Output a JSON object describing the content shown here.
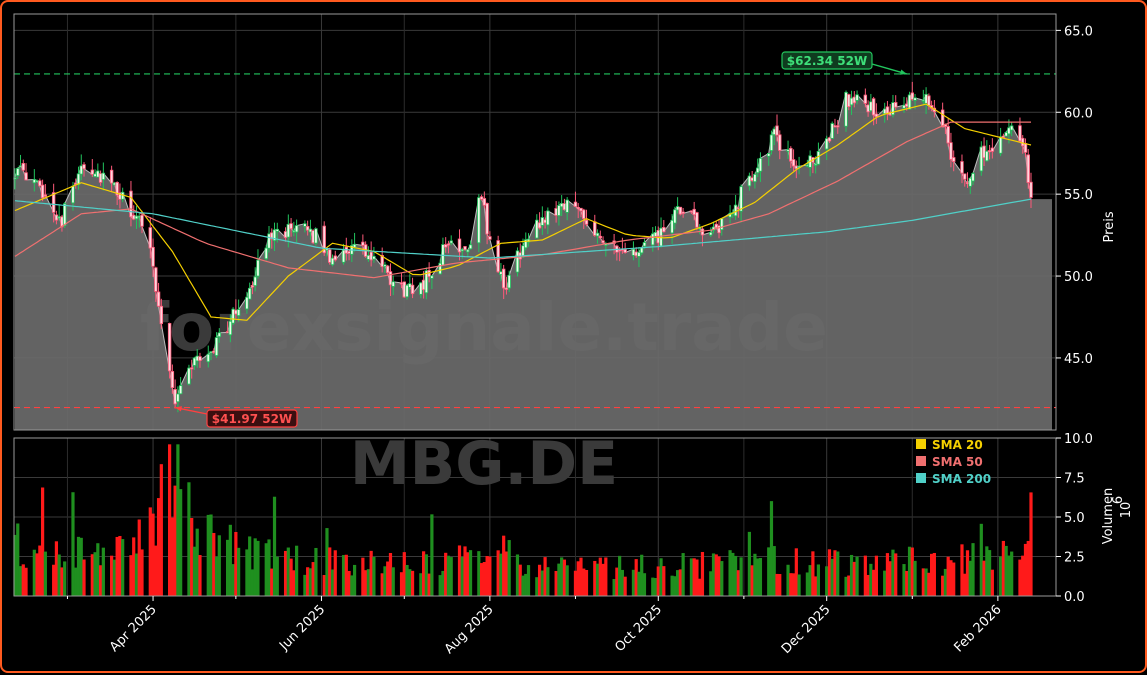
{
  "watermark": {
    "line1": "forexsignale.trade",
    "line2": "MBG.DE"
  },
  "colors": {
    "up": "#22c55e",
    "down": "#ff5a7a",
    "vol_up": "#1f8f1f",
    "vol_down": "#ff1a1a",
    "area": "#6b6b6b",
    "sma20": "#f5d000",
    "sma50": "#f07070",
    "sma200": "#50d0c8",
    "high_line": "#22c55e",
    "low_line": "#ff4040",
    "border": "#ff5a1f"
  },
  "chart_data": {
    "type": "line",
    "price_axis": {
      "label": "Preis",
      "ylim": [
        40.6,
        66.0
      ],
      "ticks": [
        45.0,
        50.0,
        55.0,
        60.0,
        65.0
      ]
    },
    "volume_axis": {
      "label": "Volumen",
      "multiplier": "10",
      "exponent": "6",
      "ylim": [
        0,
        10.0
      ],
      "ticks": [
        0.0,
        2.5,
        5.0,
        7.5,
        10.0
      ]
    },
    "x_ticks": [
      {
        "label": "Apr 2025",
        "date": "2025-04-01"
      },
      {
        "label": "Jun 2025",
        "date": "2025-06-01"
      },
      {
        "label": "Aug 2025",
        "date": "2025-08-01"
      },
      {
        "label": "Oct 2025",
        "date": "2025-10-01"
      },
      {
        "label": "Dec 2025",
        "date": "2025-12-01"
      },
      {
        "label": "Feb 2026",
        "date": "2026-02-01"
      }
    ],
    "date_range": [
      "2025-02-10",
      "2026-02-13"
    ],
    "close_keypoints": [
      [
        "2025-02-10",
        56.5
      ],
      [
        "2025-02-20",
        55.2
      ],
      [
        "2025-02-27",
        53.4
      ],
      [
        "2025-03-06",
        57.0
      ],
      [
        "2025-03-14",
        56.0
      ],
      [
        "2025-03-24",
        54.0
      ],
      [
        "2025-03-31",
        52.0
      ],
      [
        "2025-04-04",
        47.0
      ],
      [
        "2025-04-08",
        43.5
      ],
      [
        "2025-04-09",
        42.3
      ],
      [
        "2025-04-14",
        44.5
      ],
      [
        "2025-04-22",
        45.5
      ],
      [
        "2025-04-30",
        47.5
      ],
      [
        "2025-05-08",
        50.0
      ],
      [
        "2025-05-15",
        53.2
      ],
      [
        "2025-05-22",
        52.5
      ],
      [
        "2025-05-28",
        52.8
      ],
      [
        "2025-06-04",
        51.2
      ],
      [
        "2025-06-12",
        51.8
      ],
      [
        "2025-06-20",
        51.0
      ],
      [
        "2025-06-27",
        49.5
      ],
      [
        "2025-07-03",
        49.0
      ],
      [
        "2025-07-10",
        50.0
      ],
      [
        "2025-07-17",
        52.0
      ],
      [
        "2025-07-24",
        51.8
      ],
      [
        "2025-07-29",
        55.0
      ],
      [
        "2025-08-01",
        52.0
      ],
      [
        "2025-08-06",
        49.2
      ],
      [
        "2025-08-12",
        51.5
      ],
      [
        "2025-08-20",
        53.5
      ],
      [
        "2025-08-28",
        54.5
      ],
      [
        "2025-09-04",
        53.8
      ],
      [
        "2025-09-10",
        52.5
      ],
      [
        "2025-09-17",
        51.2
      ],
      [
        "2025-09-24",
        51.5
      ],
      [
        "2025-10-02",
        52.5
      ],
      [
        "2025-10-09",
        54.0
      ],
      [
        "2025-10-15",
        53.2
      ],
      [
        "2025-10-22",
        52.5
      ],
      [
        "2025-10-28",
        54.0
      ],
      [
        "2025-11-05",
        56.5
      ],
      [
        "2025-11-12",
        58.5
      ],
      [
        "2025-11-18",
        57.0
      ],
      [
        "2025-11-25",
        56.8
      ],
      [
        "2025-12-02",
        58.5
      ],
      [
        "2025-12-08",
        60.8
      ],
      [
        "2025-12-15",
        60.5
      ],
      [
        "2025-12-22",
        59.8
      ],
      [
        "2025-12-30",
        60.5
      ],
      [
        "2026-01-06",
        60.8
      ],
      [
        "2026-01-12",
        59.5
      ],
      [
        "2026-01-16",
        57.0
      ],
      [
        "2026-01-20",
        55.5
      ],
      [
        "2026-01-26",
        57.5
      ],
      [
        "2026-02-02",
        58.5
      ],
      [
        "2026-02-06",
        59.5
      ],
      [
        "2026-02-10",
        58.2
      ],
      [
        "2026-02-13",
        54.8
      ]
    ],
    "series": [
      {
        "name": "SMA 20",
        "keypoints": [
          [
            "2025-02-10",
            54.0
          ],
          [
            "2025-03-06",
            55.7
          ],
          [
            "2025-03-24",
            54.8
          ],
          [
            "2025-04-08",
            51.5
          ],
          [
            "2025-04-22",
            47.5
          ],
          [
            "2025-05-05",
            47.3
          ],
          [
            "2025-05-20",
            50.0
          ],
          [
            "2025-06-05",
            52.0
          ],
          [
            "2025-06-20",
            51.5
          ],
          [
            "2025-07-05",
            50.0
          ],
          [
            "2025-07-20",
            50.6
          ],
          [
            "2025-08-05",
            52.0
          ],
          [
            "2025-08-20",
            52.2
          ],
          [
            "2025-09-05",
            53.5
          ],
          [
            "2025-09-20",
            52.5
          ],
          [
            "2025-10-05",
            52.3
          ],
          [
            "2025-10-20",
            53.2
          ],
          [
            "2025-11-05",
            54.5
          ],
          [
            "2025-11-20",
            56.5
          ],
          [
            "2025-12-05",
            58.0
          ],
          [
            "2025-12-20",
            59.8
          ],
          [
            "2026-01-06",
            60.5
          ],
          [
            "2026-01-20",
            59.0
          ],
          [
            "2026-02-01",
            58.5
          ],
          [
            "2026-02-13",
            58.0
          ]
        ]
      },
      {
        "name": "SMA 50",
        "keypoints": [
          [
            "2025-02-10",
            51.2
          ],
          [
            "2025-03-06",
            53.8
          ],
          [
            "2025-03-24",
            54.1
          ],
          [
            "2025-04-20",
            52.0
          ],
          [
            "2025-05-20",
            50.5
          ],
          [
            "2025-06-20",
            49.9
          ],
          [
            "2025-07-20",
            50.8
          ],
          [
            "2025-08-20",
            51.3
          ],
          [
            "2025-09-20",
            52.2
          ],
          [
            "2025-10-20",
            52.8
          ],
          [
            "2025-11-10",
            53.8
          ],
          [
            "2025-12-05",
            55.8
          ],
          [
            "2025-12-30",
            58.2
          ],
          [
            "2026-01-15",
            59.4
          ],
          [
            "2026-02-13",
            59.4
          ]
        ]
      },
      {
        "name": "SMA 200",
        "keypoints": [
          [
            "2025-02-10",
            54.6
          ],
          [
            "2025-04-01",
            53.8
          ],
          [
            "2025-06-01",
            51.7
          ],
          [
            "2025-08-01",
            51.1
          ],
          [
            "2025-10-01",
            51.8
          ],
          [
            "2025-12-01",
            52.7
          ],
          [
            "2026-01-01",
            53.4
          ],
          [
            "2026-02-13",
            54.7
          ]
        ]
      }
    ],
    "volume_keypoints": [
      [
        "2025-02-10",
        3.0
      ],
      [
        "2025-03-01",
        2.6
      ],
      [
        "2025-03-20",
        2.8
      ],
      [
        "2025-04-04",
        6.0
      ],
      [
        "2025-04-08",
        9.0
      ],
      [
        "2025-04-15",
        4.5
      ],
      [
        "2025-05-01",
        3.0
      ],
      [
        "2025-05-15",
        2.4
      ],
      [
        "2025-06-15",
        2.0
      ],
      [
        "2025-07-15",
        2.0
      ],
      [
        "2025-08-01",
        3.0
      ],
      [
        "2025-08-15",
        2.0
      ],
      [
        "2025-09-15",
        1.8
      ],
      [
        "2025-10-15",
        1.9
      ],
      [
        "2025-11-15",
        2.3
      ],
      [
        "2025-12-15",
        2.0
      ],
      [
        "2026-01-15",
        2.3
      ],
      [
        "2026-02-13",
        2.5
      ]
    ],
    "annotations": [
      {
        "label": "$62.34 52W",
        "price": 62.34,
        "date": "2025-12-30",
        "kind": "52w-high"
      },
      {
        "label": "$41.97 52W",
        "price": 41.97,
        "date": "2025-04-09",
        "kind": "52w-low"
      }
    ],
    "legend": {
      "placement": "lower-right of price panel",
      "entries": [
        "SMA 20",
        "SMA 50",
        "SMA 200"
      ]
    },
    "grid": true
  }
}
